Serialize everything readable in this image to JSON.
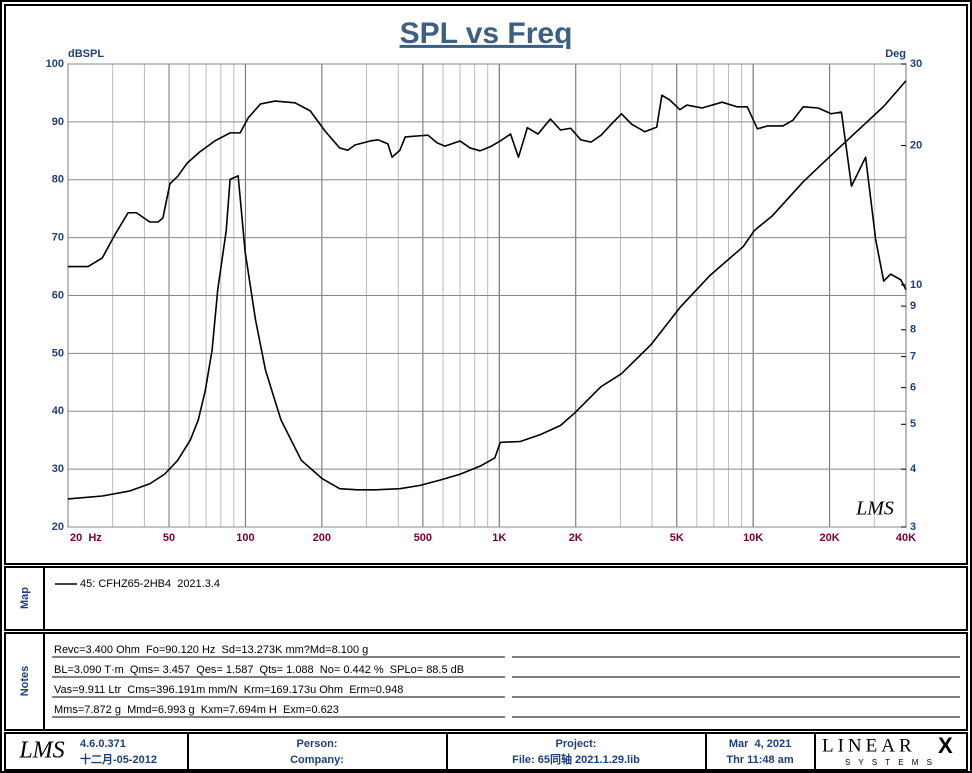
{
  "chart_data": {
    "type": "line",
    "title": "SPL vs Freq",
    "y_label": "dBSPL",
    "y2_label": "Deg",
    "watermark": "LMS",
    "xlog": true,
    "y2log": true,
    "grid": true,
    "xlim": [
      20,
      40000
    ],
    "ylim": [
      20,
      100
    ],
    "y2lim": [
      3,
      30
    ],
    "xticks": [
      {
        "value": 20,
        "label": "20  Hz"
      },
      50,
      100,
      200,
      500,
      {
        "value": 1000,
        "label": "1K"
      },
      {
        "value": 2000,
        "label": "2K"
      },
      {
        "value": 5000,
        "label": "5K"
      },
      {
        "value": 10000,
        "label": "10K"
      },
      {
        "value": 20000,
        "label": "20K"
      },
      {
        "value": 40000,
        "label": "40K"
      }
    ],
    "yticks": [
      20,
      30,
      40,
      50,
      60,
      70,
      80,
      90,
      100
    ],
    "y2ticks": [
      3,
      4,
      5,
      6,
      7,
      8,
      9,
      10,
      20,
      30
    ],
    "series": [
      {
        "color": "#000000",
        "x": [
          20,
          24,
          27.3,
          30.6,
          34.5,
          37.2,
          42,
          45.3,
          47.3,
          50.4,
          54.1,
          59,
          66,
          75.7,
          87,
          95.3,
          102.6,
          114.6,
          130.8,
          156.8,
          180,
          206,
          235,
          253,
          270,
          310,
          333,
          364,
          378,
          406,
          426,
          488,
          524,
          568,
          611,
          700,
          767,
          840,
          920,
          1009,
          1107,
          1190,
          1290,
          1421,
          1590,
          1741,
          1910,
          2094,
          2297,
          2518,
          2762,
          3029,
          3321,
          3740,
          4170,
          4370,
          4690,
          5143,
          5480,
          6290,
          7550,
          8650,
          9480,
          10390,
          11400,
          13100,
          14350,
          15740,
          18040,
          20300,
          22270,
          24400,
          27730,
          30400,
          32680,
          34800,
          38170,
          40000
        ],
        "values": [
          65,
          65,
          66.5,
          70.5,
          74.3,
          74.3,
          72.7,
          72.7,
          73.4,
          79.3,
          80.6,
          82.9,
          84.8,
          86.7,
          88.1,
          88.1,
          90.7,
          93.1,
          93.6,
          93.3,
          91.9,
          88.4,
          85.5,
          85.1,
          86,
          86.7,
          86.9,
          86.2,
          83.9,
          85.1,
          87.4,
          87.6,
          87.7,
          86.4,
          85.8,
          86.7,
          85.5,
          85,
          85.7,
          86.7,
          87.9,
          83.9,
          89,
          87.9,
          90.5,
          88.6,
          88.9,
          86.9,
          86.5,
          87.7,
          89.6,
          91.4,
          89.6,
          88.3,
          89.1,
          94.6,
          93.8,
          92.1,
          92.9,
          92.4,
          93.4,
          92.6,
          92.6,
          88.8,
          89.3,
          89.3,
          90.3,
          92.6,
          92.4,
          91.4,
          91.7,
          78.9,
          83.9,
          69.6,
          62.5,
          63.7,
          62.7,
          61
        ]
      },
      {
        "color": "#000000",
        "axis": "y2",
        "x": [
          20,
          27.3,
          35.1,
          42,
          48,
          54.1,
          60.6,
          65.2,
          69.5,
          73.9,
          77.8,
          84,
          87,
          93.6,
          99.7,
          109.6,
          120,
          138,
          166,
          200,
          235,
          276,
          327,
          406,
          488,
          586,
          700,
          840,
          960,
          1009,
          1210,
          1450,
          1741,
          1990,
          2518,
          3029,
          3960,
          5160,
          6780,
          9140,
          10100,
          11900,
          15740,
          20800,
          27370,
          32680,
          40000
        ],
        "values": [
          3.45,
          3.5,
          3.59,
          3.72,
          3.9,
          4.18,
          4.62,
          5.11,
          5.92,
          7.23,
          9.77,
          13.1,
          16.9,
          17.2,
          11.8,
          8.4,
          6.54,
          5.11,
          4.18,
          3.82,
          3.63,
          3.61,
          3.61,
          3.63,
          3.69,
          3.79,
          3.9,
          4.06,
          4.23,
          4.57,
          4.59,
          4.75,
          4.97,
          5.3,
          6.03,
          6.43,
          7.43,
          8.95,
          10.5,
          12.1,
          13.1,
          14.1,
          16.7,
          19.3,
          22.2,
          24.3,
          27.6
        ]
      }
    ]
  },
  "map": {
    "label": "Map",
    "entry": "45: CFHZ65-2HB4  2021.3.4"
  },
  "notes": {
    "label": "Notes",
    "lines": [
      "Revc=3.400 Ohm  Fo=90.120 Hz  Sd=13.273K mm?Md=8.100 g",
      "BL=3.090 T·m  Qms= 3.457  Qes= 1.587  Qts= 1.088  No= 0.442 %  SPLo= 88.5 dB",
      "Vas=9.911 Ltr  Cms=396.191m mm/N  Krm=169.173u Ohm  Erm=0.948",
      "Mms=7.872 g  Mmd=6.993 g  Kxm=7.694m H  Exm=0.623"
    ]
  },
  "footer": {
    "logo": "LMS",
    "version": "4.6.0.371",
    "build_date": "十二月-05-2012",
    "person": "Person:",
    "company": "Company:",
    "project": "Project:",
    "file": "File: 65同轴 2021.1.29.lib",
    "date": "Mar  4, 2021",
    "time": "Thr 11:48 am",
    "brand": "LINEAR",
    "brand_x": "X",
    "brand_sub": "S Y S T E M S"
  }
}
